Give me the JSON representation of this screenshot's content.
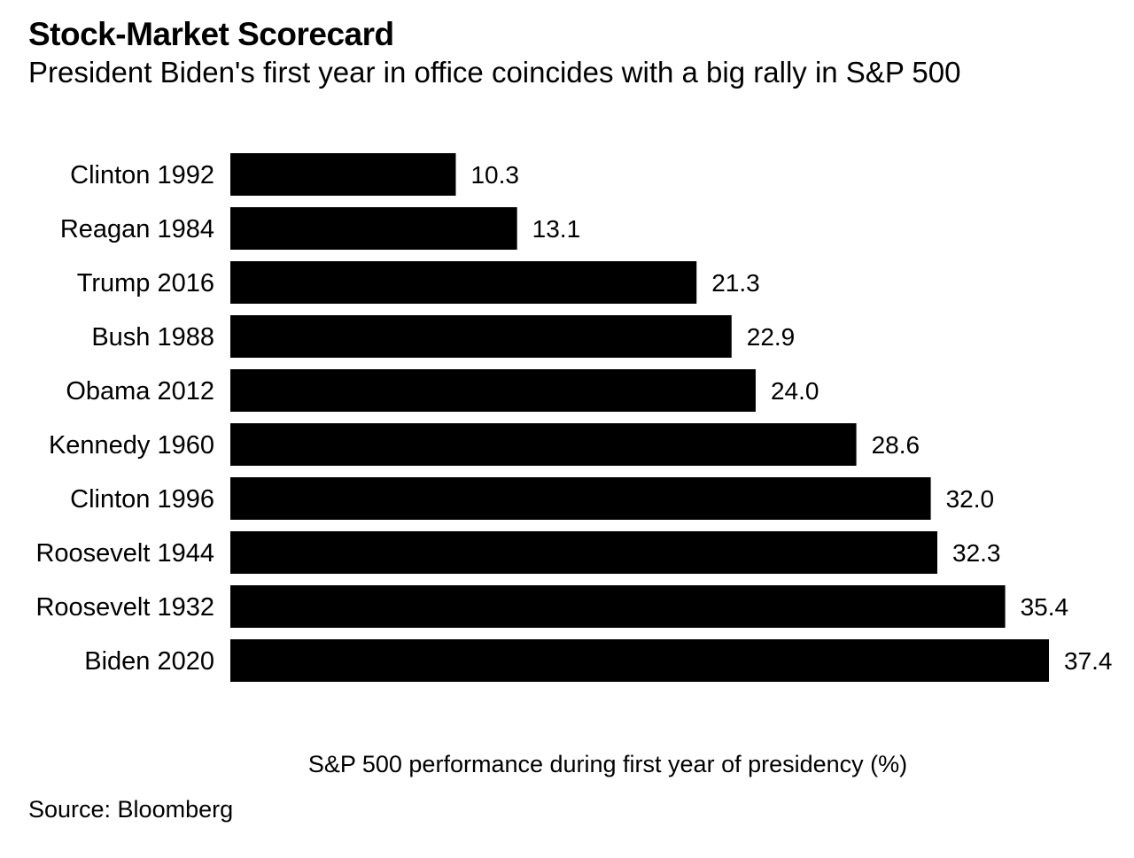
{
  "header": {
    "title": "Stock-Market Scorecard",
    "subtitle": "President Biden's first year in office coincides with a big rally in S&P 500"
  },
  "footer": {
    "source": "Source: Bloomberg"
  },
  "colors": {
    "bar": "#000000",
    "text": "#000000",
    "background": "#ffffff"
  },
  "chart_data": {
    "type": "bar",
    "orientation": "horizontal",
    "categories": [
      "Clinton 1992",
      "Reagan 1984",
      "Trump 2016",
      "Bush 1988",
      "Obama 2012",
      "Kennedy 1960",
      "Clinton 1996",
      "Roosevelt 1944",
      "Roosevelt 1932",
      "Biden 2020"
    ],
    "values": [
      10.3,
      13.1,
      21.3,
      22.9,
      24.0,
      28.6,
      32.0,
      32.3,
      35.4,
      37.4
    ],
    "value_labels": [
      "10.3",
      "13.1",
      "21.3",
      "22.9",
      "24.0",
      "28.6",
      "32.0",
      "32.3",
      "35.4",
      "37.4"
    ],
    "xlabel": "S&P 500 performance during first year of presidency (%)",
    "ylabel": "",
    "xlim": [
      0,
      37.4
    ],
    "grid": false,
    "legend": "none"
  }
}
